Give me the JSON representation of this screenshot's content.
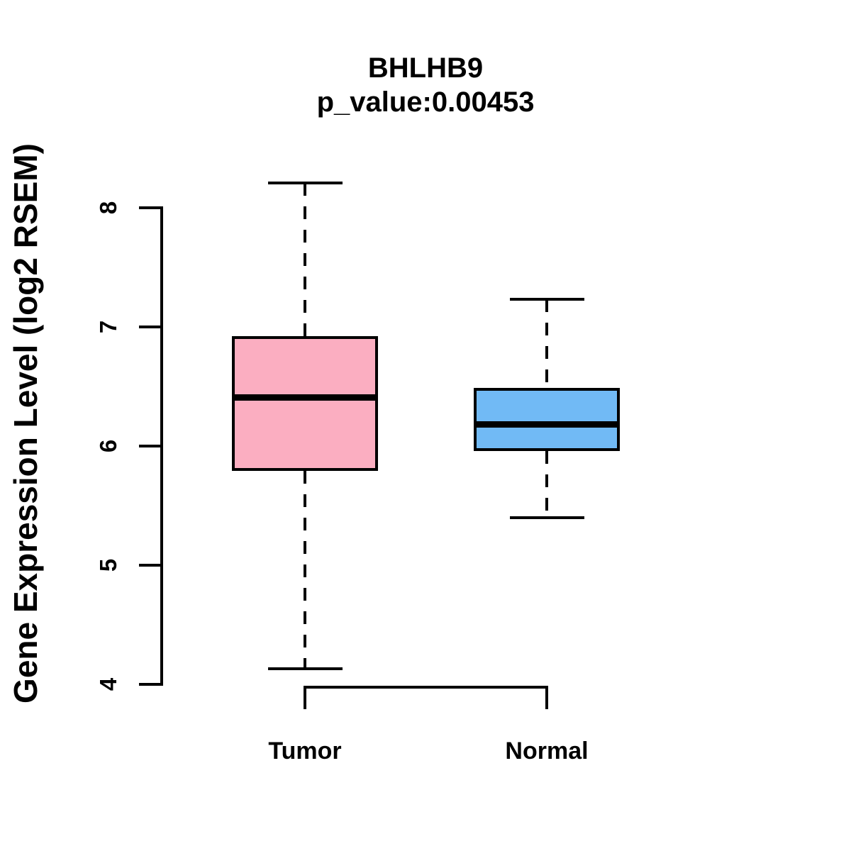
{
  "chart_data": {
    "type": "boxplot",
    "title": "BHLHB9",
    "subtitle": "p_value:0.00453",
    "ylabel": "Gene Expression Level (log2 RSEM)",
    "categories": [
      "Tumor",
      "Normal"
    ],
    "yticks": [
      8,
      7,
      6,
      5,
      4
    ],
    "ylim": [
      3.85,
      8.35
    ],
    "grid": false,
    "legend": "none",
    "whisker_style": "dashed",
    "line_color": "#000000",
    "series": [
      {
        "name": "Tumor",
        "fill_color": "#FBAEC1",
        "whisker_low": 4.13,
        "q1": 5.79,
        "median": 6.41,
        "q3": 6.92,
        "whisker_high": 8.21
      },
      {
        "name": "Normal",
        "fill_color": "#71BAF5",
        "whisker_low": 5.4,
        "q1": 5.96,
        "median": 6.18,
        "q3": 6.49,
        "whisker_high": 7.23
      }
    ]
  }
}
